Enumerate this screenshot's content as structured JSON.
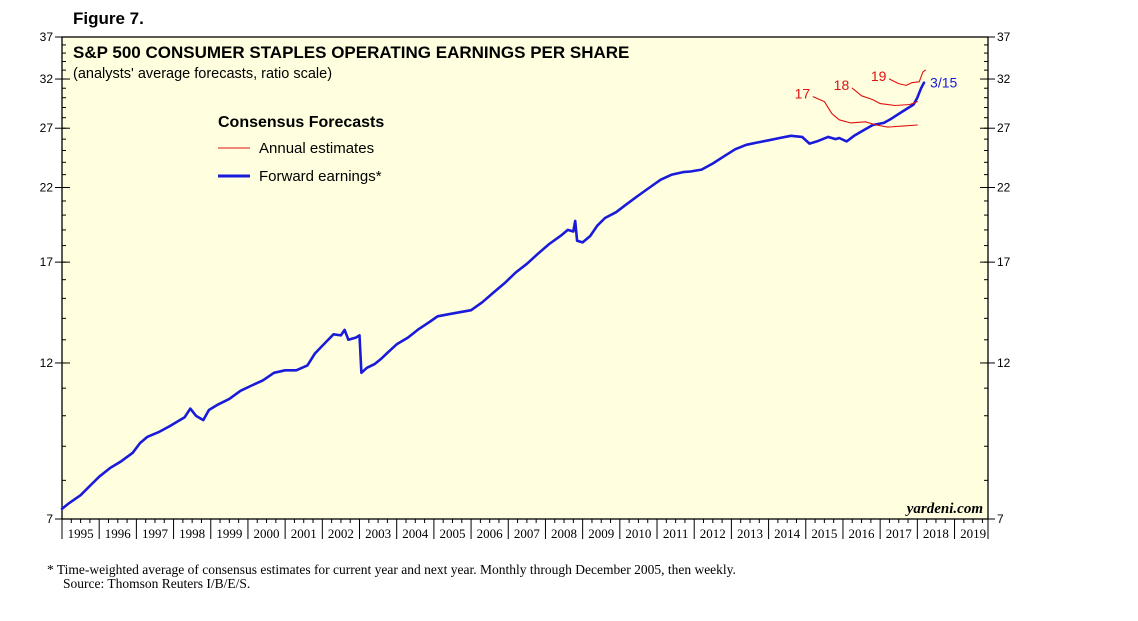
{
  "figure_label": "Figure 7.",
  "footnote": "*  Time-weighted average of consensus estimates for current year and next year. Monthly through December 2005, then weekly.",
  "source": "Source: Thomson Reuters I/B/E/S.",
  "watermark": "yardeni.com",
  "colors": {
    "forward": "#1a1adb",
    "annual": "#e01010",
    "plot_bg": "#ffffe0"
  },
  "chart_data": {
    "type": "line",
    "title": "S&P 500 CONSUMER STAPLES OPERATING EARNINGS PER SHARE",
    "subtitle": "(analysts' average forecasts, ratio scale)",
    "scale": "log",
    "ylim": [
      7,
      37
    ],
    "yticks": [
      7,
      12,
      17,
      22,
      27,
      32,
      37
    ],
    "xlim": [
      1995,
      2019.9
    ],
    "xticks": [
      "1995",
      "1996",
      "1997",
      "1998",
      "1999",
      "2000",
      "2001",
      "2002",
      "2003",
      "2004",
      "2005",
      "2006",
      "2007",
      "2008",
      "2009",
      "2010",
      "2011",
      "2012",
      "2013",
      "2014",
      "2015",
      "2016",
      "2017",
      "2018",
      "2019"
    ],
    "legend": {
      "title": "Consensus Forecasts",
      "position": "top-left",
      "entries": [
        "Annual estimates",
        "Forward earnings*"
      ]
    },
    "end_label": "3/15",
    "series": [
      {
        "name": "Forward earnings*",
        "style": "forward",
        "points": [
          [
            1995.0,
            7.25
          ],
          [
            1995.2,
            7.4
          ],
          [
            1995.5,
            7.6
          ],
          [
            1995.8,
            7.9
          ],
          [
            1996.0,
            8.1
          ],
          [
            1996.3,
            8.35
          ],
          [
            1996.6,
            8.55
          ],
          [
            1996.9,
            8.8
          ],
          [
            1997.1,
            9.1
          ],
          [
            1997.3,
            9.3
          ],
          [
            1997.6,
            9.45
          ],
          [
            1997.9,
            9.65
          ],
          [
            1998.1,
            9.8
          ],
          [
            1998.3,
            9.95
          ],
          [
            1998.45,
            10.25
          ],
          [
            1998.6,
            10.0
          ],
          [
            1998.8,
            9.85
          ],
          [
            1998.95,
            10.2
          ],
          [
            1999.2,
            10.4
          ],
          [
            1999.5,
            10.6
          ],
          [
            1999.8,
            10.9
          ],
          [
            2000.1,
            11.1
          ],
          [
            2000.4,
            11.3
          ],
          [
            2000.7,
            11.6
          ],
          [
            2001.0,
            11.7
          ],
          [
            2001.3,
            11.7
          ],
          [
            2001.6,
            11.9
          ],
          [
            2001.8,
            12.4
          ],
          [
            2002.1,
            12.9
          ],
          [
            2002.3,
            13.25
          ],
          [
            2002.5,
            13.2
          ],
          [
            2002.6,
            13.45
          ],
          [
            2002.7,
            13.0
          ],
          [
            2002.9,
            13.1
          ],
          [
            2003.0,
            13.2
          ],
          [
            2003.05,
            11.6
          ],
          [
            2003.2,
            11.8
          ],
          [
            2003.4,
            11.95
          ],
          [
            2003.6,
            12.2
          ],
          [
            2003.8,
            12.5
          ],
          [
            2004.0,
            12.8
          ],
          [
            2004.3,
            13.1
          ],
          [
            2004.6,
            13.5
          ],
          [
            2004.9,
            13.85
          ],
          [
            2005.1,
            14.1
          ],
          [
            2005.4,
            14.2
          ],
          [
            2005.7,
            14.3
          ],
          [
            2006.0,
            14.4
          ],
          [
            2006.3,
            14.8
          ],
          [
            2006.6,
            15.3
          ],
          [
            2006.9,
            15.8
          ],
          [
            2007.2,
            16.4
          ],
          [
            2007.5,
            16.9
          ],
          [
            2007.8,
            17.5
          ],
          [
            2008.1,
            18.1
          ],
          [
            2008.4,
            18.6
          ],
          [
            2008.6,
            19.0
          ],
          [
            2008.75,
            18.9
          ],
          [
            2008.8,
            19.6
          ],
          [
            2008.85,
            18.3
          ],
          [
            2009.0,
            18.2
          ],
          [
            2009.2,
            18.6
          ],
          [
            2009.4,
            19.3
          ],
          [
            2009.6,
            19.8
          ],
          [
            2009.9,
            20.2
          ],
          [
            2010.2,
            20.8
          ],
          [
            2010.5,
            21.4
          ],
          [
            2010.8,
            22.0
          ],
          [
            2011.1,
            22.6
          ],
          [
            2011.4,
            23.0
          ],
          [
            2011.7,
            23.2
          ],
          [
            2011.9,
            23.25
          ],
          [
            2012.2,
            23.4
          ],
          [
            2012.5,
            23.9
          ],
          [
            2012.8,
            24.5
          ],
          [
            2013.1,
            25.1
          ],
          [
            2013.4,
            25.5
          ],
          [
            2013.7,
            25.7
          ],
          [
            2014.0,
            25.9
          ],
          [
            2014.3,
            26.1
          ],
          [
            2014.6,
            26.3
          ],
          [
            2014.9,
            26.2
          ],
          [
            2015.1,
            25.6
          ],
          [
            2015.3,
            25.8
          ],
          [
            2015.6,
            26.2
          ],
          [
            2015.8,
            26.0
          ],
          [
            2015.9,
            26.1
          ],
          [
            2016.1,
            25.8
          ],
          [
            2016.3,
            26.3
          ],
          [
            2016.6,
            26.9
          ],
          [
            2016.8,
            27.3
          ],
          [
            2017.1,
            27.5
          ],
          [
            2017.3,
            27.9
          ],
          [
            2017.6,
            28.6
          ],
          [
            2017.9,
            29.3
          ],
          [
            2018.0,
            30.0
          ],
          [
            2018.1,
            31.0
          ],
          [
            2018.18,
            31.6
          ]
        ]
      },
      {
        "name": "17",
        "style": "annual",
        "points": [
          [
            2015.2,
            30.1
          ],
          [
            2015.5,
            29.6
          ],
          [
            2015.7,
            28.4
          ],
          [
            2015.9,
            27.8
          ],
          [
            2016.2,
            27.5
          ],
          [
            2016.6,
            27.6
          ],
          [
            2016.9,
            27.3
          ],
          [
            2017.2,
            27.1
          ],
          [
            2017.6,
            27.2
          ],
          [
            2018.0,
            27.3
          ]
        ]
      },
      {
        "name": "18",
        "style": "annual",
        "points": [
          [
            2016.25,
            31.0
          ],
          [
            2016.5,
            30.2
          ],
          [
            2016.8,
            29.8
          ],
          [
            2017.0,
            29.4
          ],
          [
            2017.4,
            29.2
          ],
          [
            2017.8,
            29.3
          ],
          [
            2018.0,
            29.6
          ]
        ]
      },
      {
        "name": "19",
        "style": "annual",
        "points": [
          [
            2017.25,
            32.0
          ],
          [
            2017.5,
            31.5
          ],
          [
            2017.7,
            31.3
          ],
          [
            2017.85,
            31.6
          ],
          [
            2018.05,
            31.7
          ],
          [
            2018.15,
            32.8
          ],
          [
            2018.22,
            33.0
          ]
        ]
      }
    ]
  }
}
